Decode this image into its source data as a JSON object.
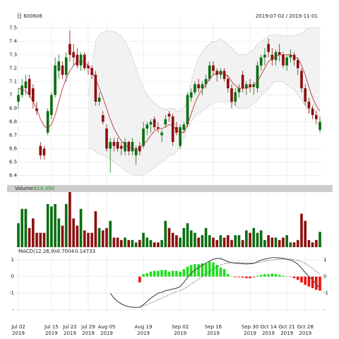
{
  "chart_data": {
    "type": "candlestick",
    "title": "日 600606",
    "date_range": "2019-07-02 / 2019-11-01",
    "categories": [
      "Jul 02",
      null,
      null,
      null,
      null,
      null,
      null,
      null,
      null,
      "Jul 15",
      null,
      null,
      null,
      null,
      "Jul 22",
      null,
      null,
      null,
      null,
      "Jul 29",
      null,
      null,
      null,
      null,
      "Aug 05",
      null,
      null,
      null,
      null,
      null,
      null,
      null,
      null,
      null,
      "Aug 19",
      null,
      null,
      null,
      null,
      null,
      null,
      null,
      null,
      null,
      "Sep 02",
      null,
      null,
      null,
      null,
      null,
      null,
      null,
      null,
      "Sep 16",
      null,
      null,
      null,
      null,
      null,
      null,
      null,
      null,
      null,
      "Sep 30",
      null,
      null,
      null,
      null,
      "Oct 14",
      null,
      null,
      null,
      null,
      "Oct 21",
      null,
      null,
      null,
      null,
      "Oct 28",
      null,
      null,
      null,
      null
    ],
    "years": [
      "2019",
      null,
      null,
      null,
      null,
      null,
      null,
      null,
      null,
      "2019",
      null,
      null,
      null,
      null,
      "2019",
      null,
      null,
      null,
      null,
      "2019",
      null,
      null,
      null,
      null,
      "2019",
      null,
      null,
      null,
      null,
      null,
      null,
      null,
      null,
      null,
      "2019",
      null,
      null,
      null,
      null,
      null,
      null,
      null,
      null,
      null,
      "2019",
      null,
      null,
      null,
      null,
      null,
      null,
      null,
      null,
      "2019",
      null,
      null,
      null,
      null,
      null,
      null,
      null,
      null,
      null,
      "2019",
      null,
      null,
      null,
      null,
      "2019",
      null,
      null,
      null,
      null,
      "2019",
      null,
      null,
      null,
      null,
      "2019",
      null,
      null,
      null,
      null
    ],
    "up_color": "#0b6e12",
    "down_color": "#8c1010",
    "ma_color": "#b22222",
    "band_color": "#999999",
    "grid": true,
    "ylim": [
      6.35,
      7.55
    ],
    "yticks": [
      6.4,
      6.5,
      6.6,
      6.7,
      6.8,
      6.9,
      7.0,
      7.1,
      7.2,
      7.3,
      7.4,
      7.5
    ],
    "candles": [
      [
        6.95,
        7.05,
        6.9,
        7.0
      ],
      [
        7.0,
        7.12,
        6.98,
        7.07
      ],
      [
        7.05,
        7.15,
        7.0,
        7.1
      ],
      [
        7.12,
        7.15,
        6.98,
        7.0
      ],
      [
        7.05,
        7.08,
        6.9,
        6.95
      ],
      [
        6.9,
        6.95,
        6.85,
        6.88
      ],
      [
        6.62,
        6.65,
        6.52,
        6.55
      ],
      [
        6.6,
        6.62,
        6.52,
        6.55
      ],
      [
        6.72,
        6.9,
        6.7,
        6.88
      ],
      [
        6.85,
        7.02,
        6.82,
        7.0
      ],
      [
        7.0,
        7.28,
        6.98,
        7.22
      ],
      [
        7.18,
        7.3,
        7.12,
        7.25
      ],
      [
        7.22,
        7.25,
        7.12,
        7.15
      ],
      [
        7.15,
        7.32,
        7.1,
        7.28
      ],
      [
        7.38,
        7.48,
        7.25,
        7.3
      ],
      [
        7.32,
        7.38,
        7.22,
        7.28
      ],
      [
        7.3,
        7.35,
        7.2,
        7.22
      ],
      [
        7.22,
        7.32,
        7.18,
        7.3
      ],
      [
        7.3,
        7.32,
        7.18,
        7.2
      ],
      [
        7.22,
        7.25,
        7.15,
        7.2
      ],
      [
        7.2,
        7.22,
        7.12,
        7.15
      ],
      [
        7.15,
        7.18,
        6.92,
        6.95
      ],
      [
        6.95,
        7.02,
        6.92,
        6.98
      ],
      [
        6.85,
        6.88,
        6.78,
        6.8
      ],
      [
        6.75,
        6.78,
        6.58,
        6.6
      ],
      [
        6.6,
        6.68,
        6.42,
        6.65
      ],
      [
        6.65,
        6.68,
        6.58,
        6.62
      ],
      [
        6.65,
        6.68,
        6.58,
        6.6
      ],
      [
        6.62,
        6.65,
        6.55,
        6.6
      ],
      [
        6.58,
        6.68,
        6.55,
        6.65
      ],
      [
        6.65,
        6.66,
        6.55,
        6.58
      ],
      [
        6.58,
        6.68,
        6.55,
        6.65
      ],
      [
        6.55,
        6.62,
        6.48,
        6.6
      ],
      [
        6.62,
        6.65,
        6.55,
        6.58
      ],
      [
        6.62,
        6.8,
        6.6,
        6.75
      ],
      [
        6.75,
        6.8,
        6.7,
        6.78
      ],
      [
        6.78,
        6.82,
        6.72,
        6.8
      ],
      [
        6.82,
        6.84,
        6.74,
        6.76
      ],
      [
        6.76,
        6.8,
        6.72,
        6.75
      ],
      [
        6.7,
        6.74,
        6.65,
        6.72
      ],
      [
        6.78,
        6.85,
        6.76,
        6.82
      ],
      [
        6.86,
        6.88,
        6.8,
        6.84
      ],
      [
        6.84,
        6.86,
        6.62,
        6.65
      ],
      [
        6.76,
        6.8,
        6.7,
        6.72
      ],
      [
        6.62,
        6.78,
        6.6,
        6.76
      ],
      [
        6.74,
        6.8,
        6.72,
        6.78
      ],
      [
        6.78,
        7.02,
        6.76,
        7.0
      ],
      [
        6.98,
        7.05,
        6.95,
        7.02
      ],
      [
        7.02,
        7.1,
        7.0,
        7.08
      ],
      [
        7.08,
        7.12,
        7.02,
        7.05
      ],
      [
        7.05,
        7.1,
        7.0,
        7.08
      ],
      [
        7.08,
        7.15,
        7.05,
        7.12
      ],
      [
        7.12,
        7.25,
        7.1,
        7.22
      ],
      [
        7.22,
        7.25,
        7.15,
        7.18
      ],
      [
        7.18,
        7.2,
        7.1,
        7.15
      ],
      [
        7.15,
        7.2,
        7.12,
        7.18
      ],
      [
        7.18,
        7.2,
        7.1,
        7.12
      ],
      [
        7.12,
        7.15,
        7.02,
        7.05
      ],
      [
        7.05,
        7.08,
        6.9,
        6.95
      ],
      [
        6.95,
        7.05,
        6.92,
        7.02
      ],
      [
        7.02,
        7.08,
        6.98,
        7.05
      ],
      [
        7.15,
        7.18,
        7.02,
        7.05
      ],
      [
        7.05,
        7.1,
        7.0,
        7.08
      ],
      [
        7.08,
        7.12,
        7.02,
        7.06
      ],
      [
        7.06,
        7.1,
        7.0,
        7.08
      ],
      [
        7.05,
        7.25,
        7.02,
        7.22
      ],
      [
        7.22,
        7.3,
        7.18,
        7.28
      ],
      [
        7.28,
        7.35,
        7.22,
        7.3
      ],
      [
        7.38,
        7.42,
        7.28,
        7.32
      ],
      [
        7.3,
        7.35,
        7.22,
        7.26
      ],
      [
        7.26,
        7.34,
        7.22,
        7.32
      ],
      [
        7.32,
        7.38,
        7.25,
        7.3
      ],
      [
        7.3,
        7.32,
        7.2,
        7.22
      ],
      [
        7.22,
        7.3,
        7.18,
        7.28
      ],
      [
        7.28,
        7.34,
        7.24,
        7.3
      ],
      [
        7.3,
        7.32,
        7.22,
        7.26
      ],
      [
        7.26,
        7.28,
        7.15,
        7.2
      ],
      [
        7.18,
        7.2,
        7.02,
        7.05
      ],
      [
        7.05,
        7.08,
        6.92,
        6.95
      ],
      [
        6.95,
        6.98,
        6.86,
        6.9
      ],
      [
        6.9,
        6.92,
        6.82,
        6.85
      ],
      [
        6.85,
        6.88,
        6.78,
        6.82
      ],
      [
        6.74,
        6.84,
        6.72,
        6.8
      ]
    ],
    "ma": [
      7.05,
      7.04,
      7.03,
      7.0,
      6.95,
      6.9,
      6.82,
      6.77,
      6.75,
      6.78,
      6.85,
      6.95,
      7.05,
      7.12,
      7.18,
      7.22,
      7.25,
      7.25,
      7.24,
      7.22,
      7.18,
      7.12,
      7.05,
      6.98,
      6.9,
      6.82,
      6.75,
      6.7,
      6.66,
      6.63,
      6.61,
      6.6,
      6.6,
      6.61,
      6.63,
      6.66,
      6.7,
      6.73,
      6.75,
      6.75,
      6.76,
      6.78,
      6.77,
      6.74,
      6.72,
      6.72,
      6.78,
      6.86,
      6.94,
      7.0,
      7.04,
      7.08,
      7.12,
      7.15,
      7.16,
      7.17,
      7.16,
      7.14,
      7.1,
      7.07,
      7.05,
      7.05,
      7.05,
      7.06,
      7.07,
      7.1,
      7.15,
      7.2,
      7.25,
      7.27,
      7.29,
      7.3,
      7.3,
      7.3,
      7.3,
      7.29,
      7.27,
      7.22,
      7.15,
      7.06,
      6.98,
      6.92,
      6.88
    ],
    "upper": [
      null,
      null,
      null,
      null,
      null,
      null,
      null,
      null,
      null,
      null,
      null,
      null,
      null,
      null,
      null,
      null,
      null,
      null,
      null,
      7.0,
      7.2,
      7.4,
      7.45,
      7.47,
      7.48,
      7.48,
      7.47,
      7.46,
      7.44,
      7.4,
      7.35,
      7.28,
      7.2,
      7.12,
      7.05,
      7.0,
      6.97,
      6.94,
      6.92,
      6.9,
      6.89,
      6.9,
      6.9,
      6.88,
      6.88,
      6.9,
      6.98,
      7.1,
      7.2,
      7.28,
      7.32,
      7.36,
      7.38,
      7.4,
      7.4,
      7.42,
      7.4,
      7.38,
      7.35,
      7.32,
      7.3,
      7.3,
      7.3,
      7.32,
      7.34,
      7.38,
      7.4,
      7.42,
      7.44,
      7.45,
      7.45,
      7.45,
      7.44,
      7.44,
      7.44,
      7.44,
      7.45,
      7.46,
      7.48,
      7.5,
      7.5,
      7.5,
      7.5
    ],
    "lower": [
      null,
      null,
      null,
      null,
      null,
      null,
      null,
      null,
      null,
      null,
      null,
      null,
      null,
      null,
      null,
      null,
      null,
      null,
      null,
      6.6,
      6.6,
      6.58,
      6.56,
      6.55,
      6.54,
      6.52,
      6.5,
      6.48,
      6.46,
      6.44,
      6.42,
      6.41,
      6.4,
      6.4,
      6.41,
      6.42,
      6.44,
      6.46,
      6.48,
      6.5,
      6.52,
      6.55,
      6.55,
      6.58,
      6.62,
      6.68,
      6.74,
      6.8,
      6.84,
      6.86,
      6.88,
      6.9,
      6.92,
      6.94,
      6.95,
      6.95,
      6.95,
      6.95,
      6.94,
      6.92,
      6.9,
      6.9,
      6.9,
      6.92,
      6.94,
      6.96,
      7.0,
      7.02,
      7.05,
      7.08,
      7.1,
      7.1,
      7.1,
      7.08,
      7.06,
      7.04,
      7.0,
      6.96,
      6.92,
      6.88,
      6.86,
      6.85,
      6.84
    ],
    "volume": {
      "label": "Volume:",
      "vlim": [
        0,
        1150000
      ],
      "values": [
        500000,
        800000,
        800000,
        400000,
        600000,
        300000,
        300000,
        300000,
        900000,
        850000,
        900000,
        600000,
        450000,
        900000,
        1150000,
        600000,
        450000,
        800000,
        350000,
        300000,
        300000,
        750000,
        400000,
        350000,
        400000,
        550000,
        200000,
        200000,
        150000,
        200000,
        150000,
        150000,
        100000,
        150000,
        300000,
        200000,
        150000,
        100000,
        100000,
        150000,
        550000,
        400000,
        300000,
        250000,
        200000,
        400000,
        500000,
        350000,
        300000,
        200000,
        250000,
        400000,
        250000,
        200000,
        150000,
        250000,
        200000,
        250000,
        150000,
        250000,
        250000,
        150000,
        350000,
        300000,
        400000,
        300000,
        350000,
        150000,
        250000,
        200000,
        200000,
        150000,
        200000,
        250000,
        100000,
        100000,
        150000,
        700000,
        550000,
        150000,
        100000,
        150000,
        319350
      ],
      "value_labels": [
        null,
        null,
        null,
        null,
        null,
        null,
        null,
        null,
        null,
        null,
        null,
        null,
        null,
        null,
        null,
        null,
        null,
        null,
        null,
        null,
        null,
        null,
        null,
        null,
        null,
        null,
        null,
        null,
        null,
        null,
        null,
        null,
        null,
        null,
        null,
        null,
        null,
        null,
        null,
        null,
        null,
        null,
        null,
        null,
        null,
        null,
        null,
        null,
        null,
        null,
        null,
        null,
        null,
        null,
        null,
        null,
        null,
        null,
        null,
        null,
        null,
        null,
        null,
        null,
        null,
        null,
        null,
        null,
        null,
        null,
        null,
        null,
        null,
        null,
        null,
        null,
        null,
        null,
        null,
        null,
        null,
        null,
        "319,350"
      ]
    },
    "macd": {
      "label": "MACD(12,26,9):",
      "mlim": [
        -2.15,
        1.35
      ],
      "ticks": [
        1,
        0,
        -1,
        {
          "value": -2,
          "label": "-"
        }
      ],
      "up_color": "#22dd22",
      "down_color": "#ee1111",
      "dif": [
        null,
        null,
        null,
        null,
        null,
        null,
        null,
        null,
        null,
        null,
        null,
        null,
        null,
        null,
        null,
        null,
        null,
        null,
        null,
        null,
        null,
        null,
        null,
        null,
        null,
        -1.0,
        -1.3,
        -1.5,
        -1.65,
        -1.75,
        -1.82,
        -1.85,
        -1.86,
        -1.86,
        -1.7,
        -1.5,
        -1.3,
        -1.15,
        -1.0,
        -0.95,
        -0.85,
        -0.8,
        -0.75,
        -0.7,
        -0.6,
        -0.35,
        -0.05,
        0.2,
        0.4,
        0.55,
        0.7,
        0.8,
        0.95,
        1.05,
        1.1,
        1.1,
        1.0,
        0.9,
        0.85,
        0.8,
        0.8,
        0.78,
        0.76,
        0.78,
        0.8,
        0.9,
        1.0,
        1.05,
        1.1,
        1.15,
        1.15,
        1.12,
        1.1,
        1.05,
        1.0,
        0.9,
        0.75,
        0.5,
        0.25,
        0.0,
        -0.2,
        -0.45,
        -0.7004
      ],
      "dea": [
        null,
        null,
        null,
        null,
        null,
        null,
        null,
        null,
        null,
        null,
        null,
        null,
        null,
        null,
        null,
        null,
        null,
        null,
        null,
        null,
        null,
        null,
        null,
        null,
        null,
        null,
        null,
        null,
        null,
        null,
        null,
        null,
        null,
        -1.82,
        -1.78,
        -1.7,
        -1.6,
        -1.5,
        -1.4,
        -1.3,
        -1.2,
        -1.1,
        -1.0,
        -0.92,
        -0.85,
        -0.75,
        -0.6,
        -0.45,
        -0.3,
        -0.15,
        0.0,
        0.15,
        0.3,
        0.45,
        0.6,
        0.7,
        0.78,
        0.82,
        0.84,
        0.84,
        0.84,
        0.83,
        0.82,
        0.82,
        0.82,
        0.84,
        0.88,
        0.92,
        0.97,
        1.0,
        1.03,
        1.05,
        1.06,
        1.06,
        1.05,
        1.03,
        0.98,
        0.9,
        0.8,
        0.65,
        0.5,
        0.3,
        0.14733
      ],
      "hist": [
        null,
        null,
        null,
        null,
        null,
        null,
        null,
        null,
        null,
        null,
        null,
        null,
        null,
        null,
        null,
        null,
        null,
        null,
        null,
        null,
        null,
        null,
        null,
        null,
        null,
        null,
        null,
        null,
        null,
        null,
        null,
        null,
        null,
        -0.35,
        0.15,
        0.2,
        0.3,
        0.35,
        0.35,
        0.4,
        0.4,
        0.3,
        0.35,
        0.35,
        0.3,
        0.45,
        0.6,
        0.7,
        0.75,
        0.75,
        0.8,
        0.8,
        0.9,
        0.85,
        0.7,
        0.55,
        0.45,
        0.15,
        0.02,
        -0.04,
        -0.04,
        -0.06,
        -0.1,
        -0.1,
        -0.04,
        0.05,
        0.1,
        0.15,
        0.15,
        0.18,
        0.15,
        0.1,
        0.05,
        0.02,
        -0.02,
        -0.1,
        -0.2,
        -0.35,
        -0.5,
        -0.6,
        -0.7,
        -0.8,
        -0.85
      ]
    }
  }
}
